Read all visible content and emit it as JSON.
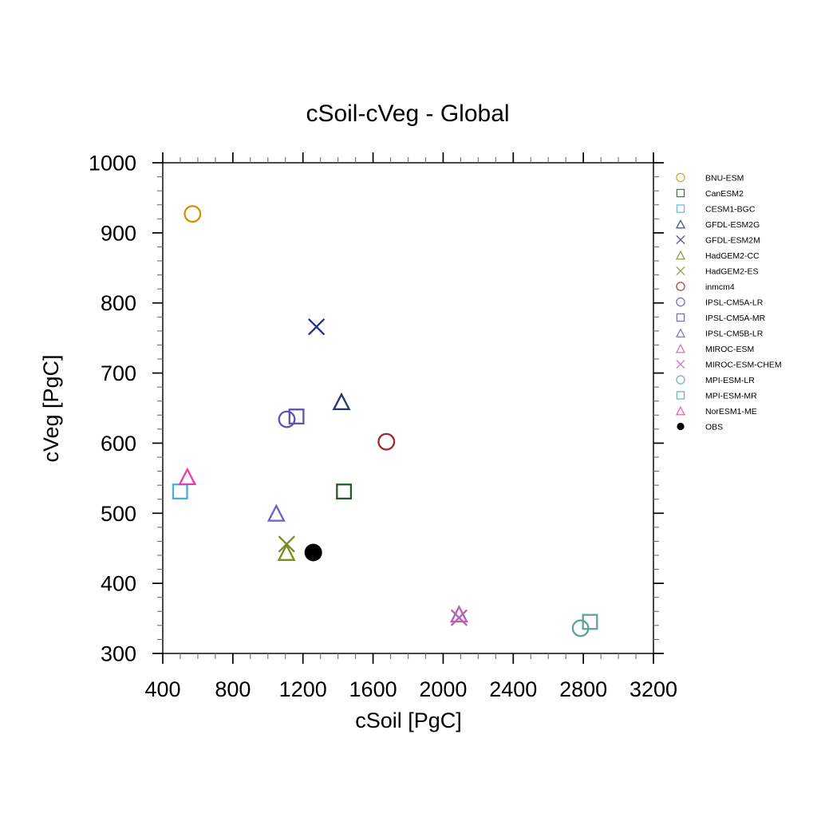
{
  "page": {
    "background_color": "#ffffff",
    "text_color": "#000000"
  },
  "chart_data": {
    "type": "scatter",
    "title": "cSoil-cVeg - Global",
    "xlabel": "cSoil [PgC]",
    "ylabel": "cVeg [PgC]",
    "xlim": [
      400,
      3200
    ],
    "ylim": [
      300,
      1000
    ],
    "x_major_ticks": [
      400,
      800,
      1200,
      1600,
      2000,
      2400,
      2800,
      3200
    ],
    "x_minor_step": 100,
    "y_major_ticks": [
      300,
      400,
      500,
      600,
      700,
      800,
      900,
      1000
    ],
    "y_minor_step": 20,
    "grid": false,
    "legend_position": "right",
    "axes_units": "PgC",
    "series": [
      {
        "name": "BNU-ESM",
        "marker": "circle",
        "color": "#D2920E",
        "x": 570,
        "y": 927
      },
      {
        "name": "CanESM2",
        "marker": "square",
        "color": "#275B2E",
        "x": 1434,
        "y": 531
      },
      {
        "name": "CESM1-BGC",
        "marker": "square",
        "color": "#43B2D8",
        "x": 499,
        "y": 531
      },
      {
        "name": "GFDL-ESM2G",
        "marker": "triangle",
        "color": "#23366D",
        "x": 1420,
        "y": 659
      },
      {
        "name": "GFDL-ESM2M",
        "marker": "x",
        "color": "#2B2E7E",
        "x": 1277,
        "y": 766
      },
      {
        "name": "HadGEM2-CC",
        "marker": "triangle",
        "color": "#7A8B26",
        "x": 1106,
        "y": 444
      },
      {
        "name": "HadGEM2-ES",
        "marker": "x",
        "color": "#7A8B26",
        "x": 1107,
        "y": 456
      },
      {
        "name": "inmcm4",
        "marker": "circle",
        "color": "#A1252C",
        "x": 1676,
        "y": 602
      },
      {
        "name": "IPSL-CM5A-LR",
        "marker": "circle",
        "color": "#5B53AE",
        "x": 1108,
        "y": 634
      },
      {
        "name": "IPSL-CM5A-MR",
        "marker": "square",
        "color": "#5B53AE",
        "x": 1163,
        "y": 638
      },
      {
        "name": "IPSL-CM5B-LR",
        "marker": "triangle",
        "color": "#6A62C4",
        "x": 1048,
        "y": 500
      },
      {
        "name": "MIROC-ESM",
        "marker": "triangle",
        "color": "#B85FB6",
        "x": 2091,
        "y": 356
      },
      {
        "name": "MIROC-ESM-CHEM",
        "marker": "x",
        "color": "#B85FB6",
        "x": 2091,
        "y": 351
      },
      {
        "name": "MPI-ESM-LR",
        "marker": "circle",
        "color": "#5DA1A2",
        "x": 2784,
        "y": 336
      },
      {
        "name": "MPI-ESM-MR",
        "marker": "square",
        "color": "#5DA1A2",
        "x": 2838,
        "y": 345
      },
      {
        "name": "NorESM1-ME",
        "marker": "triangle",
        "color": "#F13AA7",
        "x": 540,
        "y": 552
      },
      {
        "name": "OBS",
        "marker": "filled-circle",
        "color": "#000000",
        "x": 1259,
        "y": 444
      }
    ]
  }
}
